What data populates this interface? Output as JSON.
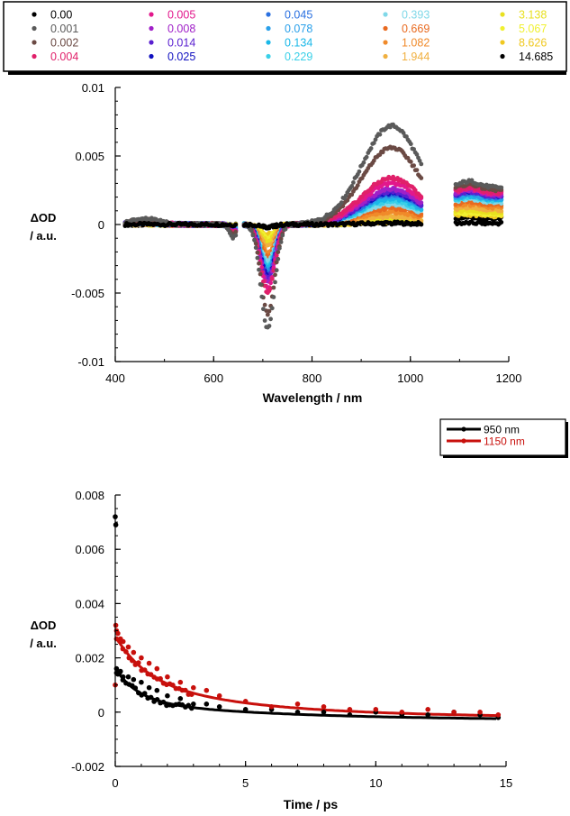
{
  "chart_data": [
    {
      "type": "scatter",
      "xlabel": "Wavelength / nm",
      "ylabel_line1": "ΔOD",
      "ylabel_line2": "/ a.u.",
      "xlim": [
        400,
        1200
      ],
      "ylim": [
        -0.01,
        0.01
      ],
      "xticks": [
        "400",
        "600",
        "800",
        "1000",
        "1200"
      ],
      "yticks": [
        "-0.01",
        "-0.005",
        "0",
        "0.005",
        "0.01"
      ],
      "legend_position": "top",
      "series": [
        {
          "name": "0.00",
          "color": "#000000",
          "peak_vis": -0.0002,
          "peak_nir": 0.0001,
          "peak_ir": 0.0001
        },
        {
          "name": "0.001",
          "color": "#5a5a5a",
          "peak_vis": -0.0076,
          "peak_nir": 0.0072,
          "peak_ir": 0.003
        },
        {
          "name": "0.002",
          "color": "#6b4a44",
          "peak_vis": -0.0065,
          "peak_nir": 0.0056,
          "peak_ir": 0.0028
        },
        {
          "name": "0.004",
          "color": "#e0206a",
          "peak_vis": -0.005,
          "peak_nir": 0.0034,
          "peak_ir": 0.0026
        },
        {
          "name": "0.005",
          "color": "#e2188c",
          "peak_vis": -0.0046,
          "peak_nir": 0.003,
          "peak_ir": 0.0025
        },
        {
          "name": "0.008",
          "color": "#a020c8",
          "peak_vis": -0.0042,
          "peak_nir": 0.0026,
          "peak_ir": 0.0024
        },
        {
          "name": "0.014",
          "color": "#5a20d0",
          "peak_vis": -0.004,
          "peak_nir": 0.0024,
          "peak_ir": 0.0023
        },
        {
          "name": "0.025",
          "color": "#1010c0",
          "peak_vis": -0.0038,
          "peak_nir": 0.0023,
          "peak_ir": 0.0023
        },
        {
          "name": "0.045",
          "color": "#2a70e0",
          "peak_vis": -0.0036,
          "peak_nir": 0.0022,
          "peak_ir": 0.0022
        },
        {
          "name": "0.078",
          "color": "#2aa0ea",
          "peak_vis": -0.0034,
          "peak_nir": 0.0021,
          "peak_ir": 0.0021
        },
        {
          "name": "0.134",
          "color": "#1ab8e8",
          "peak_vis": -0.0032,
          "peak_nir": 0.0019,
          "peak_ir": 0.002
        },
        {
          "name": "0.229",
          "color": "#3ad0e8",
          "peak_vis": -0.003,
          "peak_nir": 0.0017,
          "peak_ir": 0.0019
        },
        {
          "name": "0.393",
          "color": "#80d8e8",
          "peak_vis": -0.0027,
          "peak_nir": 0.0015,
          "peak_ir": 0.0018
        },
        {
          "name": "0.669",
          "color": "#e86a20",
          "peak_vis": -0.0024,
          "peak_nir": 0.0012,
          "peak_ir": 0.0016
        },
        {
          "name": "1.082",
          "color": "#f08a2a",
          "peak_vis": -0.002,
          "peak_nir": 0.0009,
          "peak_ir": 0.0014
        },
        {
          "name": "1.944",
          "color": "#f0b040",
          "peak_vis": -0.0016,
          "peak_nir": 0.0006,
          "peak_ir": 0.0012
        },
        {
          "name": "3.138",
          "color": "#e8e020",
          "peak_vis": -0.0012,
          "peak_nir": 0.0004,
          "peak_ir": 0.001
        },
        {
          "name": "5.067",
          "color": "#f0f030",
          "peak_vis": -0.0009,
          "peak_nir": 0.0003,
          "peak_ir": 0.0008
        },
        {
          "name": "8.626",
          "color": "#f0c820",
          "peak_vis": -0.0007,
          "peak_nir": 0.0002,
          "peak_ir": 0.0007
        },
        {
          "name": "14.685",
          "color": "#000000",
          "peak_vis": -0.0002,
          "peak_nir": 0.0001,
          "peak_ir": 0.0005
        }
      ]
    },
    {
      "type": "scatter",
      "xlabel": "Time / ps",
      "ylabel_line1": "ΔOD",
      "ylabel_line2": "/ a.u.",
      "xlim": [
        0,
        15
      ],
      "ylim": [
        -0.002,
        0.008
      ],
      "xticks": [
        "0",
        "5",
        "10",
        "15"
      ],
      "yticks": [
        "-0.002",
        "0",
        "0.002",
        "0.004",
        "0.006",
        "0.008"
      ],
      "legend_position": "top-right",
      "series": [
        {
          "name": "950 nm",
          "color": "#000000",
          "x": [
            0,
            0.02,
            0.05,
            0.1,
            0.2,
            0.3,
            0.5,
            0.7,
            1.0,
            1.3,
            1.6,
            2.0,
            2.5,
            3.0,
            3.5,
            4.0,
            5.0,
            6.0,
            7.0,
            8.0,
            9.0,
            10.0,
            11.0,
            12.0,
            13.0,
            14.0,
            14.7
          ],
          "y": [
            0.0072,
            0.0069,
            0.0016,
            0.0014,
            0.0015,
            0.0013,
            0.0013,
            0.0012,
            0.0011,
            0.0009,
            0.0008,
            0.0006,
            0.0005,
            0.0003,
            0.0003,
            0.0002,
            0.0001,
            0.0001,
            0.0,
            0.0,
            -0.0001,
            0.0,
            -0.0001,
            -0.0001,
            0.0,
            -0.0001,
            -0.0002
          ]
        },
        {
          "name": "1150 nm",
          "color": "#c8100c",
          "x": [
            0,
            0.02,
            0.05,
            0.1,
            0.2,
            0.3,
            0.5,
            0.7,
            1.0,
            1.3,
            1.6,
            2.0,
            2.5,
            3.0,
            3.5,
            4.0,
            5.0,
            6.0,
            7.0,
            8.0,
            9.0,
            10.0,
            11.0,
            12.0,
            13.0,
            14.0,
            14.7
          ],
          "y": [
            0.001,
            0.0032,
            0.003,
            0.0029,
            0.0027,
            0.0026,
            0.0024,
            0.0022,
            0.002,
            0.0018,
            0.0016,
            0.0013,
            0.0011,
            0.0009,
            0.0008,
            0.0006,
            0.0004,
            0.0002,
            0.0003,
            0.0002,
            0.0001,
            0.0001,
            0.0,
            0.0001,
            0.0,
            0.0,
            -0.0001
          ]
        },
        {
          "name": "950 nm",
          "color": "#000000",
          "fit": true,
          "amp1": 0.0012,
          "tau1": 0.9,
          "amp2": 0.0007,
          "tau2": 6.0,
          "offset": -0.0003
        },
        {
          "name": "1150 nm",
          "color": "#c8100c",
          "fit": true,
          "amp1": 0.0016,
          "tau1": 1.2,
          "amp2": 0.0014,
          "tau2": 5.0,
          "offset": -0.0002
        }
      ]
    }
  ]
}
